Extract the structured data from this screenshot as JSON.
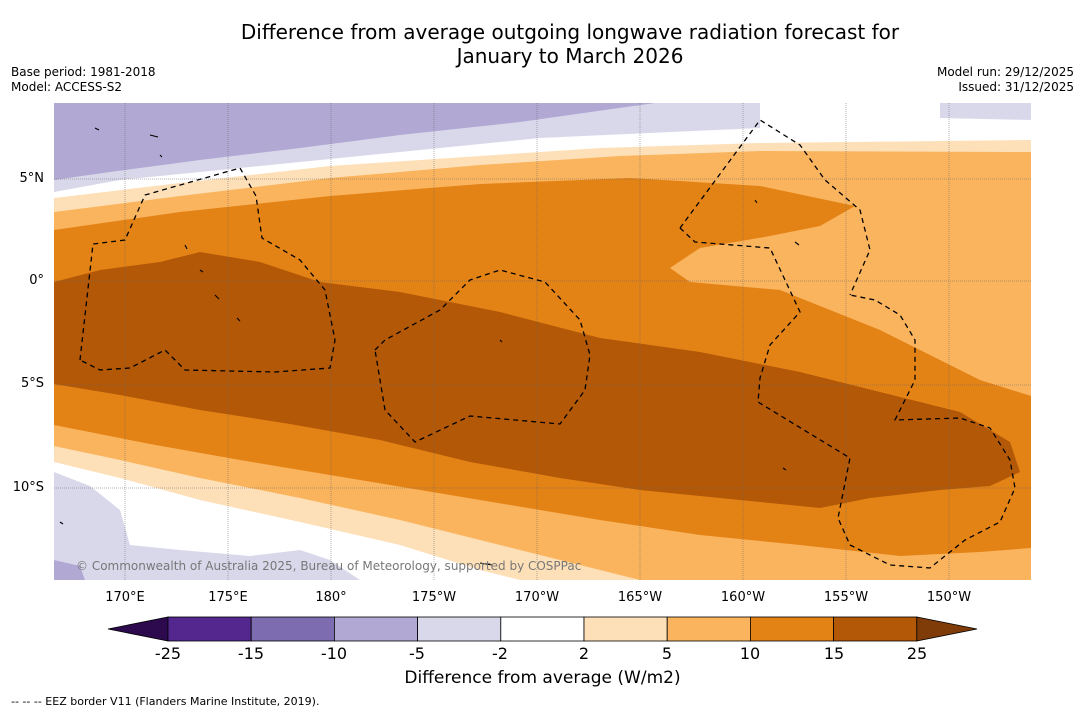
{
  "title_line1": "Difference from average outgoing longwave radiation forecast for",
  "title_line2": "January to March 2026",
  "meta": {
    "base_period": "Base period: 1981-2018",
    "model": "Model: ACCESS-S2",
    "model_run": "Model run: 29/12/2025",
    "issued": "Issued: 31/12/2025"
  },
  "lat_labels": [
    "5°N",
    "0°",
    "5°S",
    "10°S"
  ],
  "lon_labels": [
    "170°E",
    "175°E",
    "180°",
    "175°W",
    "170°W",
    "165°W",
    "160°W",
    "155°W",
    "150°W"
  ],
  "copyright": "© Commonwealth of Australia 2025, Bureau of Meteorology, supported by COSPPac",
  "colorbar": {
    "ticks": [
      "-25",
      "-15",
      "-10",
      "-5",
      "-2",
      "2",
      "5",
      "10",
      "15",
      "25"
    ],
    "colors": {
      "lt_m25": "#2d0a4e",
      "m25_m15": "#54278f",
      "m15_m10": "#7d6cb0",
      "m10_m5": "#b1a9d3",
      "m5_m2": "#d9d8eb",
      "m2_2": "#ffffff",
      "p2_5": "#fde0b8",
      "p5_10": "#fbb45e",
      "p10_15": "#e38316",
      "p15_25": "#b35807",
      "gt_25": "#7f3b08"
    },
    "label": "Difference from average (W/m2)"
  },
  "legend": "--  --  -- EEZ border V11 (Flanders Marine Institute, 2019)."
}
